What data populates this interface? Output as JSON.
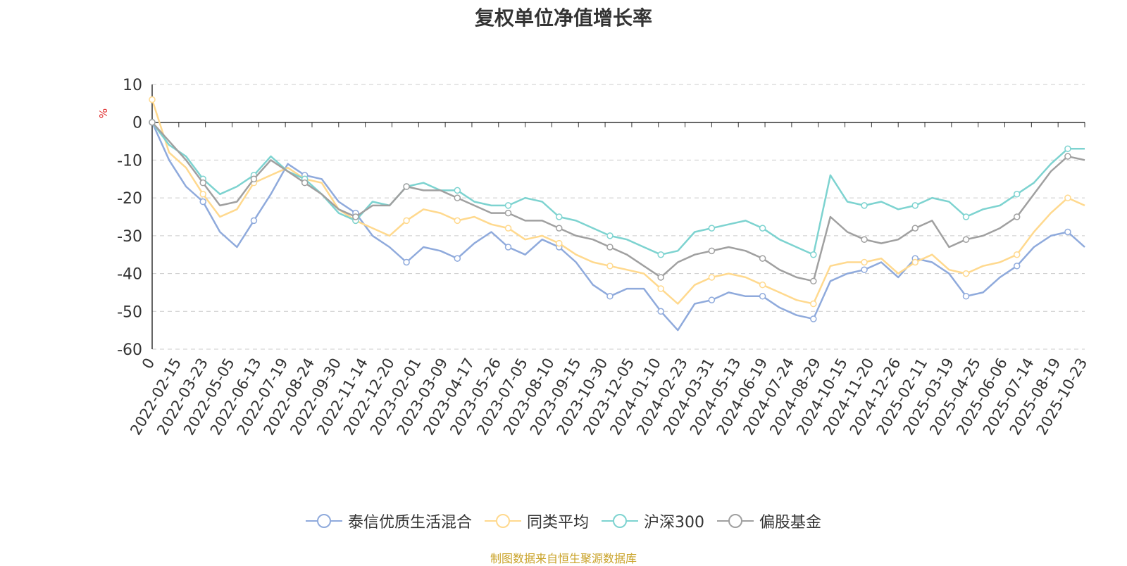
{
  "chart_data": {
    "type": "line",
    "title": "复权单位净值增长率",
    "ylabel": "%",
    "ylim": [
      -60,
      10
    ],
    "yticks": [
      10,
      0,
      -10,
      -20,
      -30,
      -40,
      -50,
      -60
    ],
    "grid": true,
    "legend_position": "bottom-center",
    "xticks": [
      "0",
      "2022-02-15",
      "2022-03-23",
      "2022-05-05",
      "2022-06-13",
      "2022-07-19",
      "2022-08-24",
      "2022-09-30",
      "2022-11-14",
      "2022-12-20",
      "2023-02-01",
      "2023-03-09",
      "2023-04-17",
      "2023-05-26",
      "2023-07-05",
      "2023-08-10",
      "2023-09-15",
      "2023-10-30",
      "2023-12-05",
      "2024-01-10",
      "2024-02-23",
      "2024-03-31",
      "2024-05-13",
      "2024-06-19",
      "2024-07-24",
      "2024-08-29",
      "2024-10-15",
      "2024-11-20",
      "2024-12-26",
      "2025-02-11",
      "2025-03-19",
      "2025-04-25",
      "2025-06-06",
      "2025-07-14",
      "2025-08-19",
      "2025-10-23"
    ],
    "series": [
      {
        "name": "泰信优质生活混合",
        "color": "#8faadc",
        "values": [
          0,
          -10,
          -17,
          -21,
          -29,
          -33,
          -26,
          -19,
          -11,
          -14,
          -15,
          -21,
          -24,
          -30,
          -33,
          -37,
          -33,
          -34,
          -36,
          -32,
          -29,
          -33,
          -35,
          -31,
          -33,
          -37,
          -43,
          -46,
          -44,
          -44,
          -50,
          -55,
          -48,
          -47,
          -45,
          -46,
          -46,
          -49,
          -51,
          -52,
          -42,
          -40,
          -39,
          -37,
          -41,
          -36,
          -37,
          -40,
          -46,
          -45,
          -41,
          -38,
          -33,
          -30,
          -29,
          -33
        ]
      },
      {
        "name": "同类平均",
        "color": "#ffd98e",
        "values": [
          6,
          -8,
          -12,
          -19,
          -25,
          -23,
          -16,
          -14,
          -12,
          -15,
          -16,
          -23,
          -26,
          -28,
          -30,
          -26,
          -23,
          -24,
          -26,
          -25,
          -27,
          -28,
          -31,
          -30,
          -32,
          -35,
          -37,
          -38,
          -39,
          -40,
          -44,
          -48,
          -43,
          -41,
          -40,
          -41,
          -43,
          -45,
          -47,
          -48,
          -38,
          -37,
          -37,
          -36,
          -40,
          -37,
          -35,
          -39,
          -40,
          -38,
          -37,
          -35,
          -29,
          -24,
          -20,
          -22
        ]
      },
      {
        "name": "沪深300",
        "color": "#7dd3d0",
        "values": [
          0,
          -6,
          -9,
          -15,
          -19,
          -17,
          -14,
          -9,
          -13,
          -15,
          -19,
          -24,
          -26,
          -21,
          -22,
          -17,
          -16,
          -18,
          -18,
          -21,
          -22,
          -22,
          -20,
          -21,
          -25,
          -26,
          -28,
          -30,
          -31,
          -33,
          -35,
          -34,
          -29,
          -28,
          -27,
          -26,
          -28,
          -31,
          -33,
          -35,
          -14,
          -21,
          -22,
          -21,
          -23,
          -22,
          -20,
          -21,
          -25,
          -23,
          -22,
          -19,
          -16,
          -11,
          -7,
          -7
        ]
      },
      {
        "name": "偏股基金",
        "color": "#a0a0a0",
        "values": [
          0,
          -5,
          -10,
          -16,
          -22,
          -21,
          -15,
          -10,
          -13,
          -16,
          -19,
          -23,
          -25,
          -22,
          -22,
          -17,
          -18,
          -18,
          -20,
          -22,
          -24,
          -24,
          -26,
          -26,
          -28,
          -30,
          -31,
          -33,
          -35,
          -38,
          -41,
          -37,
          -35,
          -34,
          -33,
          -34,
          -36,
          -39,
          -41,
          -42,
          -25,
          -29,
          -31,
          -32,
          -31,
          -28,
          -26,
          -33,
          -31,
          -30,
          -28,
          -25,
          -19,
          -13,
          -9,
          -10
        ]
      }
    ]
  },
  "footer": {
    "source": "制图数据来自恒生聚源数据库"
  }
}
